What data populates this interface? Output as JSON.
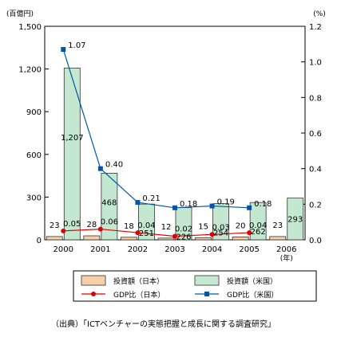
{
  "chart_data": {
    "type": "bar",
    "categories": [
      "2000",
      "2001",
      "2002",
      "2003",
      "2004",
      "2005",
      "2006"
    ],
    "x_unit": "(年)",
    "left_axis": {
      "unit": "(百億円)",
      "ticks": [
        "0",
        "300",
        "600",
        "900",
        "1,200",
        "1,500"
      ],
      "range": [
        0,
        1500
      ]
    },
    "right_axis": {
      "unit": "(%)",
      "ticks": [
        "0.0",
        "0.2",
        "0.4",
        "0.6",
        "0.8",
        "1.0",
        "1.2"
      ],
      "range": [
        0,
        1.2
      ]
    },
    "series": [
      {
        "name": "投資額（日本）",
        "kind": "bar",
        "axis": "left",
        "color": "#f5cfa8",
        "values": [
          23,
          28,
          18,
          12,
          15,
          20,
          23
        ],
        "labels": [
          "23",
          "28",
          "18",
          "12",
          "15",
          "20",
          "23"
        ]
      },
      {
        "name": "投資額（米国）",
        "kind": "bar",
        "axis": "left",
        "color": "#c3e8cf",
        "values": [
          1207,
          468,
          251,
          226,
          254,
          262,
          293
        ],
        "labels": [
          "1,207",
          "468",
          "251",
          "226",
          "254",
          "262",
          "293"
        ]
      },
      {
        "name": "GDP比（日本）",
        "kind": "line",
        "axis": "right",
        "color": "#dd0000",
        "marker": "circle",
        "values": [
          0.05,
          0.06,
          0.04,
          0.02,
          0.03,
          0.04,
          null
        ],
        "labels": [
          "0.05",
          "0.06",
          "0.04",
          "0.02",
          "0.03",
          "0.04",
          null
        ]
      },
      {
        "name": "GDP比（米国）",
        "kind": "line",
        "axis": "right",
        "color": "#0055aa",
        "marker": "square",
        "values": [
          1.07,
          0.4,
          0.21,
          0.18,
          0.19,
          0.18,
          null
        ],
        "labels": [
          "1.07",
          "0.40",
          "0.21",
          "0.18",
          "0.19",
          "0.18",
          null
        ]
      }
    ],
    "legend_position": "bottom",
    "grid": false
  },
  "source": "（出典）「ICTベンチャーの実態把握と成長に関する調査研究」"
}
